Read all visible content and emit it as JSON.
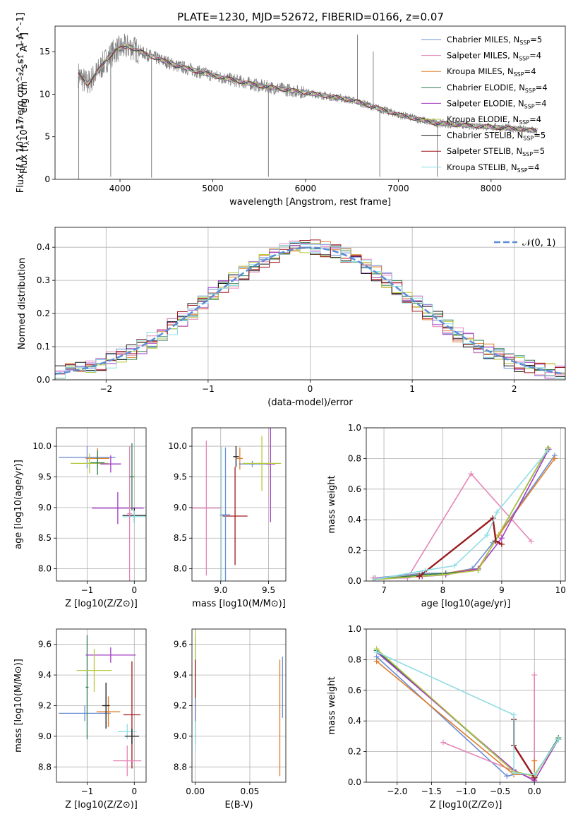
{
  "figure": {
    "title": "PLATE=1230, MJD=52672, FIBERID=0166, z=0.07"
  },
  "colors": [
    "#6b8fd6",
    "#e586b8",
    "#e07e2c",
    "#2e7d4f",
    "#a23cc4",
    "#b6c93e",
    "#1a1a1a",
    "#a0191e",
    "#8fdde4"
  ],
  "legend_models": [
    "Chabrier MILES",
    "Salpeter MILES",
    "Kroupa MILES",
    "Chabrier ELODIE",
    "Salpeter ELODIE",
    "Kroupa ELODIE",
    "Chabrier STELIB",
    "Salpeter STELIB",
    "Kroupa STELIB"
  ],
  "legend_nssp": [
    "5",
    "4",
    "4",
    "4",
    "4",
    "4",
    "5",
    "5",
    "4"
  ],
  "legend_nssp_prefix": "N",
  "legend_nssp_sub": "SSP",
  "hist_legend": "𝒩(0, 1)",
  "chart_data": [
    {
      "type": "line",
      "id": "spectrum",
      "xlabel": "wavelength [Angstrom, rest frame]",
      "ylabel": "Flux [f λ 10^-17 erg cm^-2 s^-1 A^-1]",
      "xlim": [
        3300,
        8800
      ],
      "ylim": [
        0,
        18
      ],
      "xticks": [
        4000,
        5000,
        6000,
        7000,
        8000
      ],
      "yticks": [
        0,
        5,
        10,
        15
      ],
      "grid": false,
      "legend_position": "top-right",
      "observed_spectrum_color": "#808080",
      "continuum": [
        [
          3550,
          12.3
        ],
        [
          3650,
          11.2
        ],
        [
          3750,
          12.5
        ],
        [
          3850,
          14.0
        ],
        [
          3950,
          15.2
        ],
        [
          4100,
          15.6
        ],
        [
          4300,
          14.6
        ],
        [
          4600,
          13.4
        ],
        [
          5000,
          12.2
        ],
        [
          5500,
          11.0
        ],
        [
          6000,
          10.2
        ],
        [
          6500,
          9.3
        ],
        [
          7000,
          7.6
        ],
        [
          7400,
          6.6
        ],
        [
          7800,
          6.3
        ],
        [
          8200,
          6.0
        ],
        [
          8500,
          5.7
        ]
      ],
      "spikes": [
        [
          3555,
          0.0
        ],
        [
          3900,
          0.3
        ],
        [
          4340,
          0.2
        ],
        [
          5600,
          0.3
        ],
        [
          6560,
          17.0
        ],
        [
          6730,
          15.0
        ],
        [
          6800,
          0.3
        ],
        [
          7420,
          0.3
        ]
      ]
    },
    {
      "type": "area",
      "id": "residual-histogram",
      "xlabel": "(data-model)/error",
      "ylabel": "Normed distribution",
      "xlim": [
        -2.5,
        2.5
      ],
      "ylim": [
        0,
        0.46
      ],
      "xticks": [
        -2,
        -1,
        0,
        1,
        2
      ],
      "yticks": [
        0.0,
        0.1,
        0.2,
        0.3,
        0.4
      ],
      "grid": true,
      "legend_position": "top-right",
      "bin_width": 0.1
    },
    {
      "type": "scatter",
      "id": "age-vs-metallicity",
      "xlabel": "Z [log10(Z/Z⊙)]",
      "ylabel": "age [log10(age/yr)]",
      "xlim": [
        -1.65,
        0.25
      ],
      "ylim": [
        7.8,
        10.3
      ],
      "xticks": [
        -1,
        0
      ],
      "yticks": [
        8.0,
        8.5,
        9.0,
        9.5,
        10.0
      ],
      "grid": true,
      "points": [
        {
          "x": -1.0,
          "y": 9.82,
          "xerr": 0.6,
          "yerr": 0.18,
          "series": 0
        },
        {
          "x": -0.78,
          "y": 9.8,
          "xerr": 0.25,
          "yerr": 0.17,
          "series": 2
        },
        {
          "x": -0.95,
          "y": 9.72,
          "xerr": 0.4,
          "yerr": 0.16,
          "series": 5
        },
        {
          "x": -0.78,
          "y": 9.73,
          "xerr": 0.15,
          "yerr": 0.2,
          "series": 3
        },
        {
          "x": -0.5,
          "y": 9.71,
          "xerr": 0.22,
          "yerr": 0.14,
          "series": 4
        },
        {
          "x": -0.35,
          "y": 8.99,
          "xerr": 0.55,
          "yerr": 0.26,
          "series": 4
        },
        {
          "x": 0.0,
          "y": 8.87,
          "xerr": 0.25,
          "yerr": 0.12,
          "series": 6
        },
        {
          "x": 0.0,
          "y": 8.85,
          "xerr": 0.25,
          "yerr": 0.1,
          "series": 8
        },
        {
          "x": -0.1,
          "y": 8.9,
          "xerr": 0.05,
          "yerr": 1.1,
          "series": 1
        },
        {
          "x": -0.05,
          "y": 9.5,
          "xerr": 0.05,
          "yerr": 0.55,
          "series": 3
        }
      ]
    },
    {
      "type": "scatter",
      "id": "age-vs-mass",
      "xlabel": "mass [log10(M/M⊙)]",
      "ylabel": "",
      "xlim": [
        8.7,
        9.68
      ],
      "ylim": [
        7.8,
        10.3
      ],
      "xticks": [
        9.0,
        9.5
      ],
      "yticks": [
        8.0,
        8.5,
        9.0,
        9.5,
        10.0
      ],
      "grid": true,
      "points": [
        {
          "x": 8.85,
          "y": 8.99,
          "xerr": 0.15,
          "yerr": 1.1,
          "series": 1
        },
        {
          "x": 9.01,
          "y": 8.87,
          "xerr": 0.03,
          "yerr": 1.12,
          "series": 8
        },
        {
          "x": 9.15,
          "y": 8.86,
          "xerr": 0.13,
          "yerr": 0.8,
          "series": 7
        },
        {
          "x": 9.2,
          "y": 9.8,
          "xerr": 0.03,
          "yerr": 0.18,
          "series": 2
        },
        {
          "x": 9.33,
          "y": 9.71,
          "xerr": 0.14,
          "yerr": 0.05,
          "series": 0
        },
        {
          "x": 9.52,
          "y": 9.71,
          "xerr": 0.05,
          "yerr": 0.95,
          "series": 4
        },
        {
          "x": 9.43,
          "y": 9.72,
          "xerr": 0.2,
          "yerr": 0.45,
          "series": 5
        },
        {
          "x": 9.16,
          "y": 9.83,
          "xerr": 0.03,
          "yerr": 0.17,
          "series": 6
        },
        {
          "x": 9.05,
          "y": 8.88,
          "xerr": 0.05,
          "yerr": 1.1,
          "series": 0
        }
      ]
    },
    {
      "type": "line",
      "id": "mass-weight-vs-age",
      "xlabel": "age [log10(age/yr)]",
      "ylabel": "mass weight",
      "xlim": [
        6.7,
        10.08
      ],
      "ylim": [
        0,
        1.0
      ],
      "xticks": [
        7,
        8,
        9,
        10
      ],
      "yticks": [
        0.0,
        0.2,
        0.4,
        0.6,
        0.8,
        1.0
      ],
      "grid": true,
      "series": [
        {
          "x": [
            6.85,
            7.65,
            8.05,
            8.5,
            8.85,
            9.9
          ],
          "y": [
            0.02,
            0.05,
            0.05,
            0.08,
            0.25,
            0.82
          ]
        },
        {
          "x": [
            6.82,
            7.4,
            8.48,
            9.5
          ],
          "y": [
            0.02,
            0.02,
            0.7,
            0.26
          ]
        },
        {
          "x": [
            6.85,
            7.6,
            8.05,
            8.6,
            8.95,
            9.9
          ],
          "y": [
            0.01,
            0.04,
            0.05,
            0.08,
            0.3,
            0.8
          ]
        },
        {
          "x": [
            6.85,
            7.65,
            8.05,
            8.6,
            9.78
          ],
          "y": [
            0.01,
            0.04,
            0.05,
            0.07,
            0.86
          ]
        },
        {
          "x": [
            6.85,
            7.65,
            8.05,
            8.6,
            9.0,
            9.8
          ],
          "y": [
            0.01,
            0.03,
            0.04,
            0.08,
            0.28,
            0.86
          ]
        },
        {
          "x": [
            6.85,
            7.6,
            8.0,
            8.6,
            9.79
          ],
          "y": [
            0.01,
            0.03,
            0.04,
            0.07,
            0.87
          ]
        },
        {
          "x": [
            7.6,
            8.85,
            8.9,
            9.0
          ],
          "y": [
            0.03,
            0.41,
            0.26,
            0.24
          ]
        },
        {
          "x": [
            7.6,
            8.85,
            8.9,
            9.0
          ],
          "y": [
            0.03,
            0.41,
            0.26,
            0.24
          ]
        },
        {
          "x": [
            6.85,
            7.7,
            8.2,
            8.75,
            8.92,
            9.78
          ],
          "y": [
            0.01,
            0.07,
            0.1,
            0.3,
            0.45,
            0.85
          ]
        }
      ]
    },
    {
      "type": "scatter",
      "id": "mass-vs-metallicity",
      "xlabel": "Z [log10(Z/Z⊙)]",
      "ylabel": "mass [log10(M/M⊙)]",
      "xlim": [
        -1.65,
        0.25
      ],
      "ylim": [
        8.7,
        9.7
      ],
      "xticks": [
        -1,
        0
      ],
      "yticks": [
        8.8,
        9.0,
        9.2,
        9.4,
        9.6
      ],
      "grid": true,
      "points": [
        {
          "x": -1.05,
          "y": 9.15,
          "xerr": 0.55,
          "yerr": 0.05,
          "series": 0
        },
        {
          "x": -0.55,
          "y": 9.16,
          "xerr": 0.25,
          "yerr": 0.1,
          "series": 2
        },
        {
          "x": -1.0,
          "y": 9.32,
          "xerr": 0.03,
          "yerr": 0.34,
          "series": 3
        },
        {
          "x": -0.5,
          "y": 9.53,
          "xerr": 0.53,
          "yerr": 0.05,
          "series": 4
        },
        {
          "x": -0.85,
          "y": 9.43,
          "xerr": 0.37,
          "yerr": 0.14,
          "series": 5
        },
        {
          "x": -0.6,
          "y": 9.2,
          "xerr": 0.08,
          "yerr": 0.15,
          "series": 6
        },
        {
          "x": -0.05,
          "y": 9.14,
          "xerr": 0.18,
          "yerr": 0.35,
          "series": 7
        },
        {
          "x": -0.15,
          "y": 9.03,
          "xerr": 0.2,
          "yerr": 0.05,
          "series": 8
        },
        {
          "x": -0.15,
          "y": 8.84,
          "xerr": 0.3,
          "yerr": 0.1,
          "series": 1
        },
        {
          "x": -0.05,
          "y": 9.0,
          "xerr": 0.15,
          "yerr": 0.05,
          "series": 6
        }
      ]
    },
    {
      "type": "scatter",
      "id": "mass-vs-extinction",
      "xlabel": "E(B-V)",
      "ylabel": "",
      "xlim": [
        -0.003,
        0.083
      ],
      "ylim": [
        8.7,
        9.7
      ],
      "xticks": [
        0.0,
        0.05
      ],
      "yticks": [
        8.8,
        9.0,
        9.2,
        9.4,
        9.6
      ],
      "grid": true,
      "points": [
        {
          "x": 0.0,
          "y": 9.3,
          "xerr": 0.0,
          "yerr": 0.35,
          "series": 3
        },
        {
          "x": 0.0,
          "y": 9.45,
          "xerr": 0.0,
          "yerr": 0.25,
          "series": 5
        },
        {
          "x": 0.0,
          "y": 9.3,
          "xerr": 0.0,
          "yerr": 0.2,
          "series": 7
        },
        {
          "x": 0.0,
          "y": 9.1,
          "xerr": 0.0,
          "yerr": 0.15,
          "series": 0
        },
        {
          "x": 0.0,
          "y": 9.0,
          "xerr": 0.0,
          "yerr": 0.1,
          "series": 8
        },
        {
          "x": 0.0775,
          "y": 9.12,
          "xerr": 0.0,
          "yerr": 0.38,
          "series": 2
        },
        {
          "x": 0.08,
          "y": 9.32,
          "xerr": 0.0,
          "yerr": 0.2,
          "series": 0
        }
      ]
    },
    {
      "type": "line",
      "id": "mass-weight-vs-metallicity",
      "xlabel": "Z [log10(Z/Z⊙)]",
      "ylabel": "mass weight",
      "xlim": [
        -2.45,
        0.45
      ],
      "ylim": [
        0,
        1.0
      ],
      "xticks": [
        -2.0,
        -1.5,
        -1.0,
        -0.5,
        0.0
      ],
      "yticks": [
        0.0,
        0.2,
        0.4,
        0.6,
        0.8,
        1.0
      ],
      "grid": true,
      "series": [
        {
          "x": [
            -2.3,
            -0.4,
            -0.3,
            0.0,
            0.35
          ],
          "y": [
            0.82,
            0.04,
            0.05,
            0.05,
            0.28
          ]
        },
        {
          "x": [
            -1.33,
            0.0,
            0.0
          ],
          "y": [
            0.26,
            0.02,
            0.7
          ]
        },
        {
          "x": [
            -2.3,
            -0.3,
            0.0,
            0.0
          ],
          "y": [
            0.79,
            0.05,
            0.05,
            0.14
          ]
        },
        {
          "x": [
            -2.3,
            -0.3,
            0.0,
            0.35
          ],
          "y": [
            0.86,
            0.07,
            0.04,
            0.29
          ]
        },
        {
          "x": [
            -2.3,
            -0.3,
            0.0,
            0.35
          ],
          "y": [
            0.85,
            0.08,
            0.01,
            0.28
          ]
        },
        {
          "x": [
            -2.3,
            -0.3,
            0.0,
            0.35
          ],
          "y": [
            0.87,
            0.07,
            0.04,
            0.28
          ]
        },
        {
          "x": [
            -0.3,
            -0.3,
            0.0,
            0.0
          ],
          "y": [
            0.41,
            0.24,
            0.03,
            0.03
          ]
        },
        {
          "x": [
            -0.3,
            -0.3,
            0.0,
            0.0
          ],
          "y": [
            0.41,
            0.24,
            0.03,
            0.03
          ]
        },
        {
          "x": [
            -2.3,
            -0.3,
            -0.3,
            0.0,
            0.35
          ],
          "y": [
            0.85,
            0.44,
            0.06,
            0.05,
            0.28
          ]
        }
      ]
    }
  ]
}
